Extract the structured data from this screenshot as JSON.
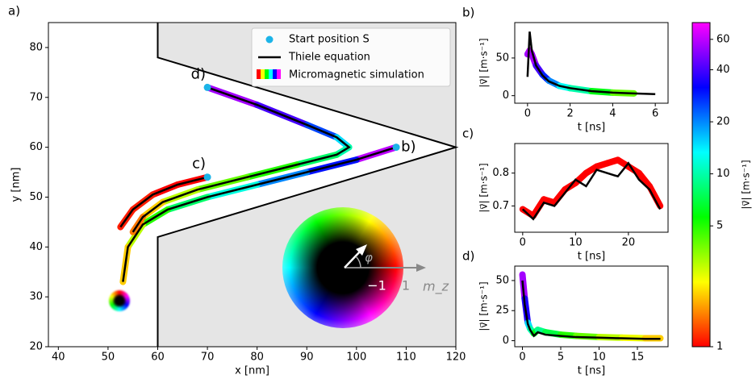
{
  "chart_data": [
    {
      "type": "trajectory",
      "title": "a)",
      "xlabel": "x [nm]",
      "ylabel": "y [nm]",
      "xlim": [
        38,
        120
      ],
      "ylim": [
        20,
        85
      ],
      "xticks": [
        40,
        50,
        60,
        70,
        80,
        90,
        100,
        110,
        120
      ],
      "yticks": [
        20,
        30,
        40,
        50,
        60,
        70,
        80
      ],
      "boundary": {
        "x": [
          60,
          60,
          120,
          60,
          60
        ],
        "y": [
          85,
          78,
          60,
          42,
          20
        ],
        "fill": "#e5e5e5",
        "color": "#000000"
      },
      "series": [
        {
          "name": "Start position S",
          "color": "#1cb4e8",
          "x": [
            108,
            70,
            70
          ],
          "y": [
            60,
            54,
            72
          ]
        },
        {
          "name": "Thiele equation",
          "color": "#000000",
          "trajectories": [
            {
              "x": [
                108,
                100,
                90,
                80,
                70,
                62,
                57,
                54,
                53
              ],
              "y": [
                60,
                57.5,
                55,
                52.5,
                50,
                47.5,
                44.5,
                40,
                33
              ]
            },
            {
              "x": [
                70,
                64,
                59,
                55,
                52.5
              ],
              "y": [
                54,
                52.5,
                50.5,
                47.5,
                44
              ]
            },
            {
              "x": [
                70,
                80,
                90,
                96,
                98.5,
                96,
                88,
                78,
                68,
                61,
                57,
                55
              ],
              "y": [
                72,
                68.5,
                64.5,
                62,
                60,
                58.5,
                56.5,
                54,
                51.5,
                49,
                46,
                43
              ]
            }
          ]
        },
        {
          "name": "Micromagnetic simulation",
          "trajectories": [
            {
              "x": [
                108,
                100,
                90,
                80,
                70,
                62,
                57,
                54,
                53
              ],
              "y": [
                60,
                57.5,
                55,
                52.5,
                50,
                47.5,
                44.5,
                40,
                33
              ],
              "v": [
                60,
                30,
                20,
                12,
                8,
                5,
                3,
                2,
                1.5
              ]
            },
            {
              "x": [
                70,
                64,
                59,
                55,
                52.5
              ],
              "y": [
                54,
                52.5,
                50.5,
                47.5,
                44
              ],
              "v": [
                1,
                1,
                1.1,
                1.1,
                1
              ]
            },
            {
              "x": [
                70,
                80,
                90,
                96,
                98.5,
                96,
                88,
                78,
                68,
                61,
                57,
                55
              ],
              "y": [
                72,
                68.5,
                64.5,
                62,
                60,
                58.5,
                56.5,
                54,
                51.5,
                49,
                46,
                43
              ],
              "v": [
                55,
                40,
                25,
                15,
                10,
                8,
                5,
                4,
                3,
                2,
                1.5,
                1.2
              ]
            }
          ]
        }
      ],
      "annotations": [
        "b)",
        "c)",
        "d)"
      ],
      "inset": {
        "labels": [
          "φ",
          "−1",
          "1",
          "m_z"
        ]
      }
    },
    {
      "type": "line",
      "title": "b)",
      "xlabel": "t [ns]",
      "ylabel": "|v⃗| [m·s⁻¹]",
      "xlim": [
        -0.6,
        6.6
      ],
      "ylim": [
        -10,
        97
      ],
      "xticks": [
        0,
        2,
        4,
        6
      ],
      "yticks": [
        0,
        50
      ],
      "x": [
        0,
        0.1,
        0.2,
        0.4,
        0.7,
        1,
        1.5,
        2,
        3,
        4,
        5,
        6
      ],
      "series": [
        {
          "colormap": true,
          "values": [
            55,
            60,
            55,
            40,
            28,
            20,
            13,
            10,
            6,
            4,
            3,
            null
          ]
        },
        {
          "color": "#000000",
          "values": [
            25,
            85,
            60,
            40,
            27,
            19,
            13,
            10,
            6,
            4,
            3,
            2
          ]
        }
      ]
    },
    {
      "type": "line",
      "title": "c)",
      "xlabel": "t [ns]",
      "ylabel": "|v⃗| [m·s⁻¹]",
      "xlim": [
        -1.5,
        27.5
      ],
      "ylim": [
        0.62,
        0.89
      ],
      "xticks": [
        0,
        10,
        20
      ],
      "yticks": [
        0.7,
        0.8
      ],
      "x": [
        0,
        2,
        4,
        6,
        8,
        10,
        12,
        14,
        16,
        18,
        20,
        22,
        24,
        26
      ],
      "series": [
        {
          "colormap": true,
          "values": [
            0.69,
            0.67,
            0.72,
            0.71,
            0.75,
            0.77,
            0.8,
            0.82,
            0.83,
            0.84,
            0.82,
            0.8,
            0.76,
            0.7
          ]
        },
        {
          "color": "#000000",
          "values": [
            0.69,
            0.66,
            0.71,
            0.7,
            0.74,
            0.78,
            0.76,
            0.81,
            0.8,
            0.79,
            0.83,
            0.78,
            0.75,
            0.69
          ]
        }
      ]
    },
    {
      "type": "line",
      "title": "d)",
      "xlabel": "t [ns]",
      "ylabel": "|v⃗| [m·s⁻¹]",
      "xlim": [
        -1,
        19
      ],
      "ylim": [
        -5,
        62
      ],
      "xticks": [
        0,
        5,
        10,
        15
      ],
      "yticks": [
        0,
        25,
        50
      ],
      "x": [
        0,
        0.3,
        0.7,
        1,
        1.5,
        2,
        3,
        5,
        7,
        10,
        13,
        16,
        18
      ],
      "series": [
        {
          "colormap": true,
          "values": [
            55,
            35,
            15,
            10,
            6,
            9,
            7,
            5,
            4,
            3,
            2.5,
            2,
            2
          ]
        },
        {
          "color": "#000000",
          "values": [
            50,
            30,
            14,
            9,
            4,
            7,
            5,
            4,
            3,
            2.5,
            2,
            1.5,
            1.5
          ]
        }
      ]
    },
    {
      "type": "colorbar",
      "label": "|v⃗| [m·s⁻¹]",
      "log": true,
      "lim": [
        1,
        75
      ],
      "ticks": [
        1,
        5,
        10,
        20,
        40,
        60
      ],
      "colors": [
        "#ff0000",
        "#ffff00",
        "#00ff00",
        "#00ffff",
        "#0000ff",
        "#ff00ff"
      ]
    }
  ]
}
